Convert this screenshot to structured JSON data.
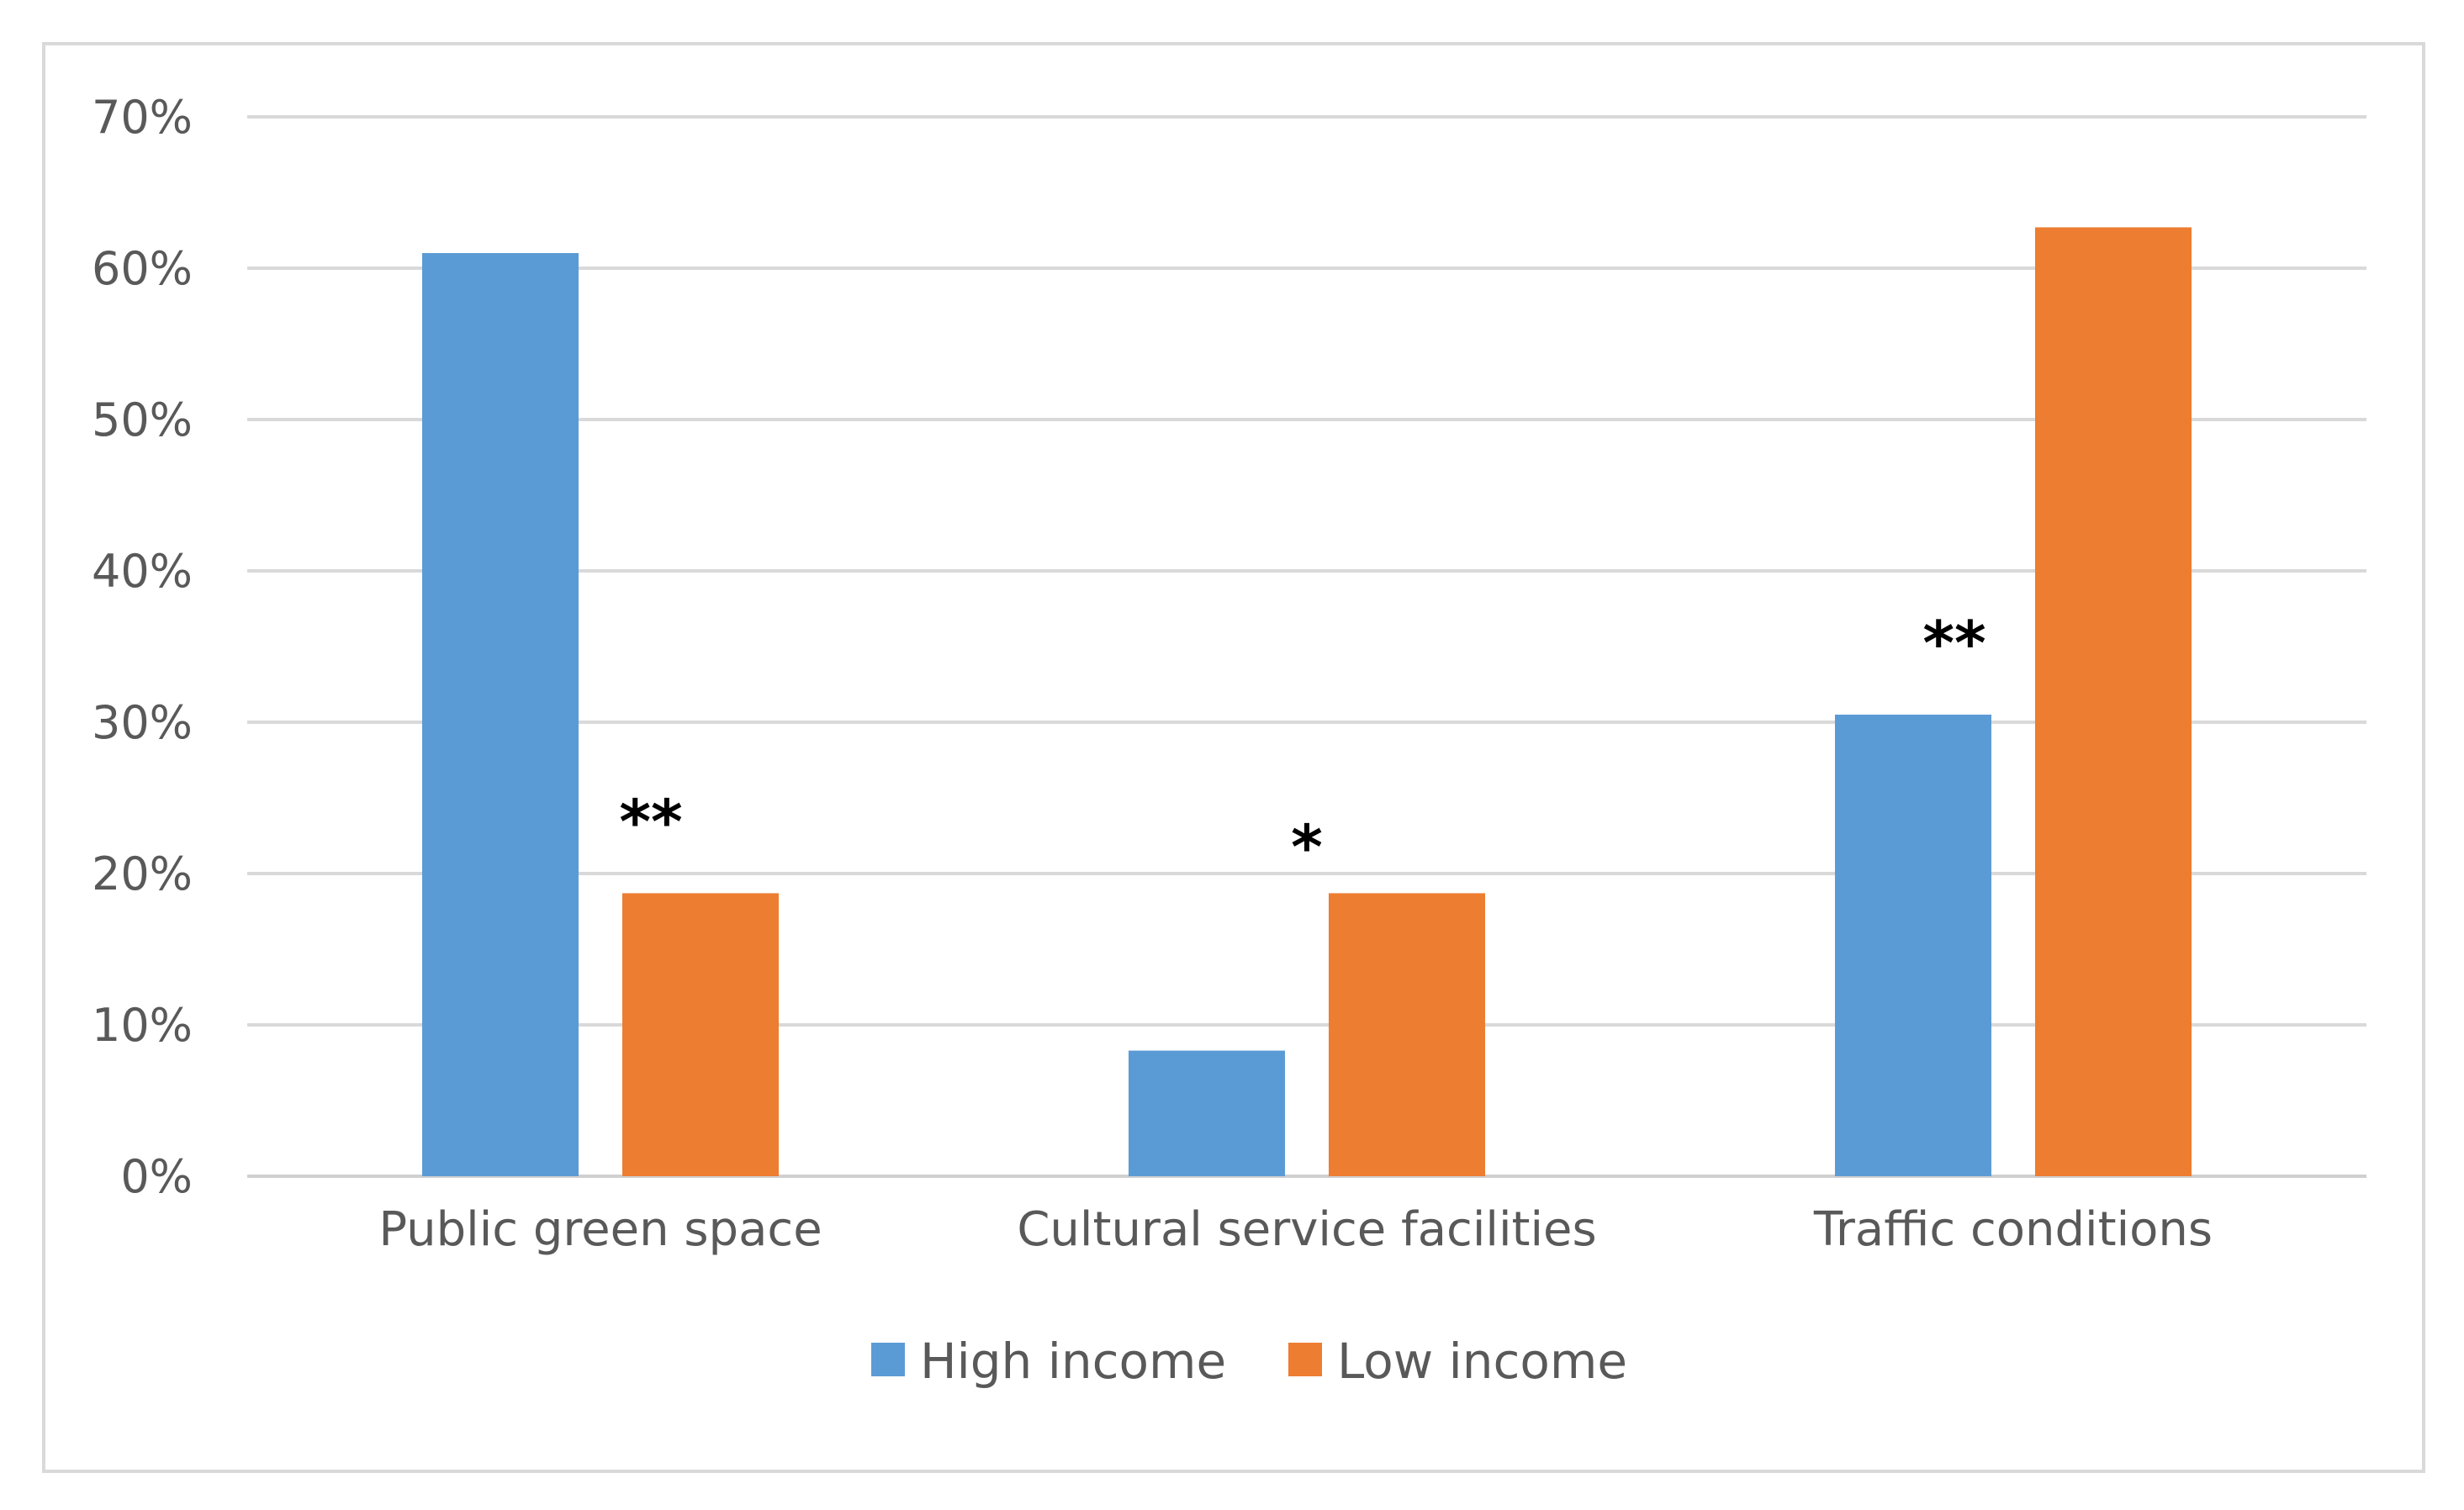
{
  "chart_data": {
    "type": "bar",
    "title": "",
    "xlabel": "",
    "ylabel": "",
    "ylim": [
      0,
      0.7
    ],
    "yticks": [
      "0%",
      "10%",
      "20%",
      "30%",
      "40%",
      "50%",
      "60%",
      "70%"
    ],
    "grid": true,
    "legend_position": "bottom",
    "categories": [
      "Public green space",
      "Cultural service facilities",
      "Traffic conditions"
    ],
    "series": [
      {
        "name": "High income",
        "color": "#5b9bd5",
        "values": [
          0.61,
          0.083,
          0.305
        ]
      },
      {
        "name": "Low income",
        "color": "#ed7d31",
        "values": [
          0.187,
          0.187,
          0.627
        ]
      }
    ],
    "annotations": [
      "**",
      "*",
      "**"
    ]
  }
}
